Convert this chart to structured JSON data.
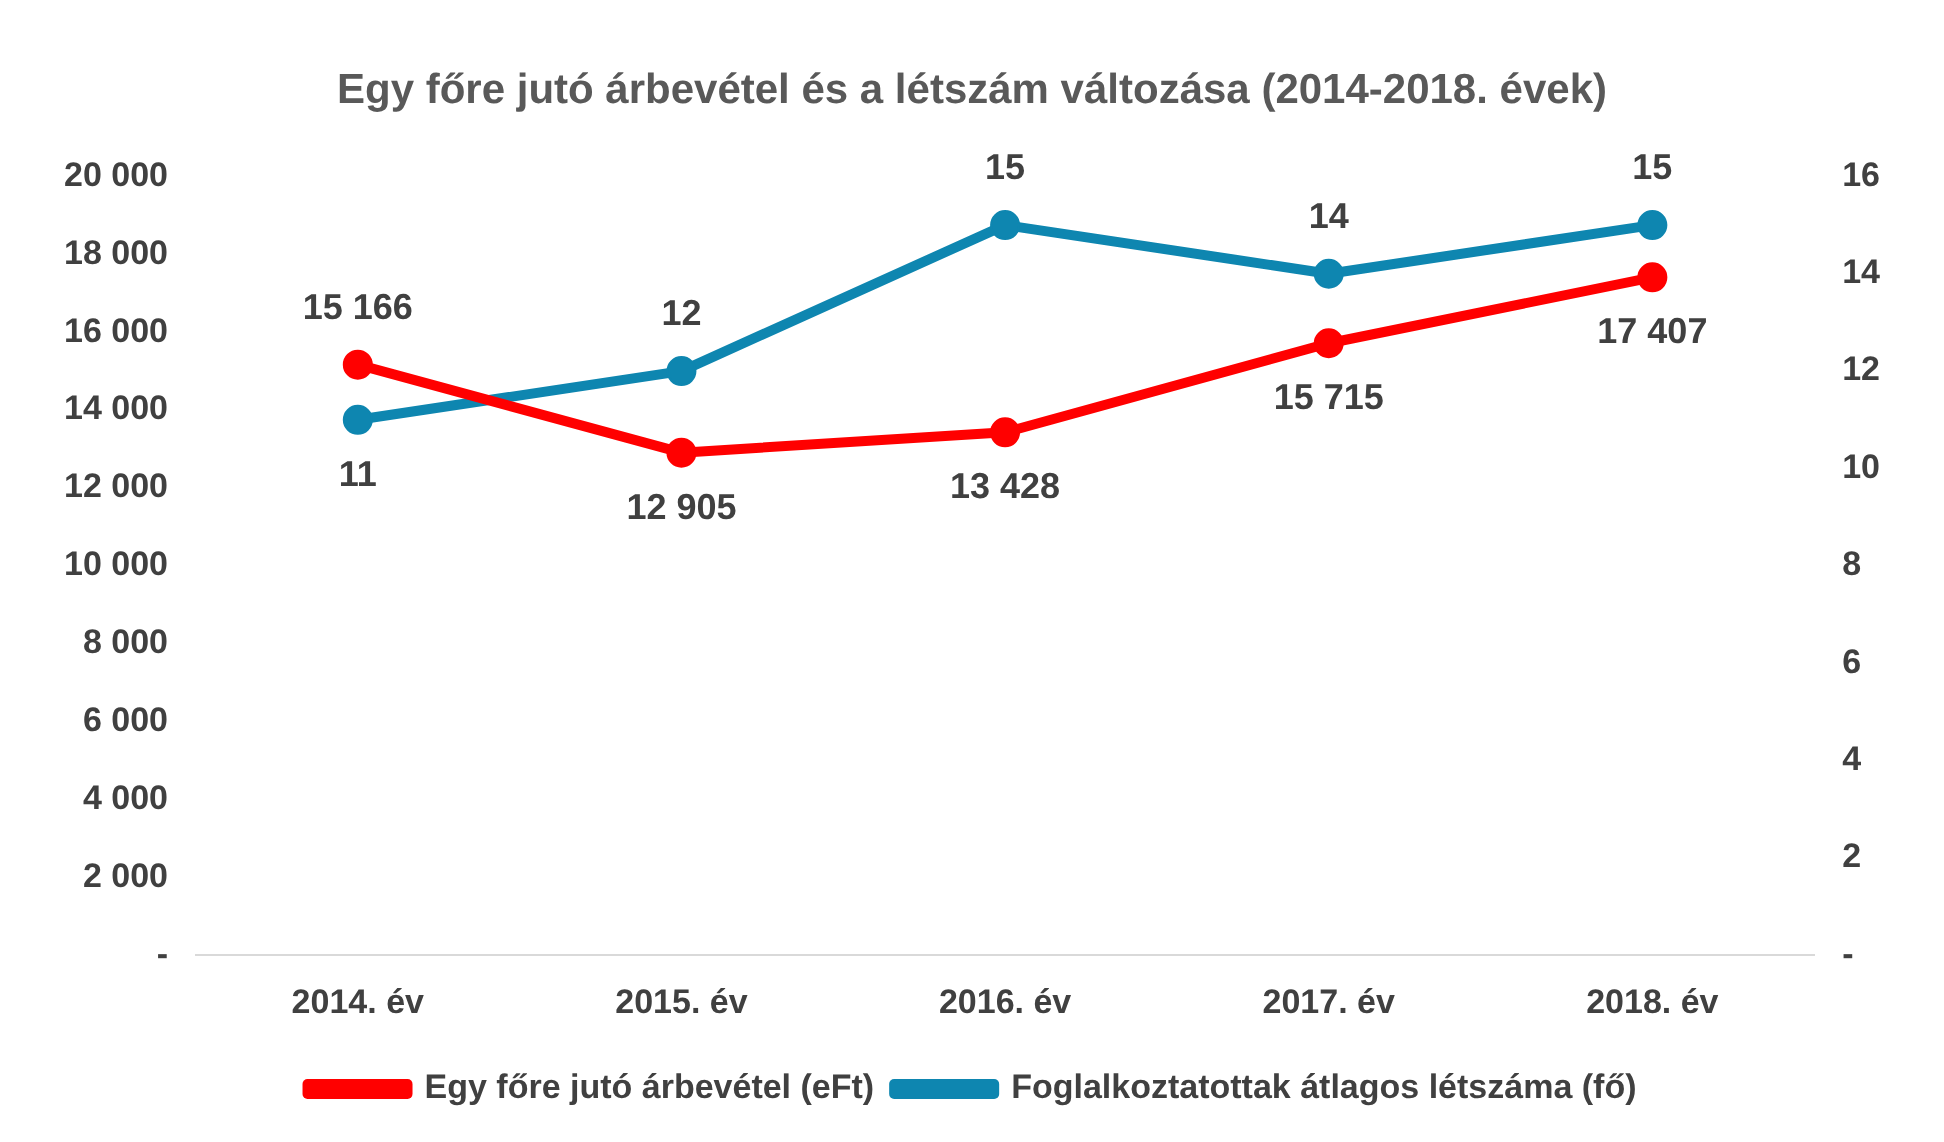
{
  "chart_data": {
    "type": "line",
    "title": "Egy főre jutó árbevétel és a létszám változása (2014-2018. évek)",
    "categories": [
      "2014. év",
      "2015. év",
      "2016. év",
      "2017. év",
      "2018. év"
    ],
    "series": [
      {
        "name": "Egy főre jutó árbevétel (eFt)",
        "color": "#ff0000",
        "values": [
          15166,
          12905,
          13428,
          15715,
          17407
        ],
        "value_labels": [
          "15 166",
          "12 905",
          "13 428",
          "15 715",
          "17 407"
        ]
      },
      {
        "name": "Foglalkoztatottak átlagos létszáma (fő)",
        "color": "#0e86b0",
        "axis": "y2",
        "values": [
          11,
          12,
          15,
          14,
          15
        ],
        "value_labels": [
          "11",
          "12",
          "15",
          "14",
          "15"
        ]
      }
    ],
    "ylim": [
      0,
      20000
    ],
    "yticks": [
      {
        "value": 0,
        "label": "-"
      },
      {
        "value": 2000,
        "label": "2 000"
      },
      {
        "value": 4000,
        "label": "4 000"
      },
      {
        "value": 6000,
        "label": "6 000"
      },
      {
        "value": 8000,
        "label": "8 000"
      },
      {
        "value": 10000,
        "label": "10 000"
      },
      {
        "value": 12000,
        "label": "12 000"
      },
      {
        "value": 14000,
        "label": "14 000"
      },
      {
        "value": 16000,
        "label": "16 000"
      },
      {
        "value": 18000,
        "label": "18 000"
      },
      {
        "value": 20000,
        "label": "20 000"
      }
    ],
    "y2lim": [
      0,
      16
    ],
    "y2ticks": [
      {
        "value": 0,
        "label": "-"
      },
      2,
      4,
      6,
      8,
      10,
      12,
      14,
      16
    ],
    "grid": false,
    "legend": "bottom",
    "marker": "circle",
    "line_style": "solid"
  }
}
